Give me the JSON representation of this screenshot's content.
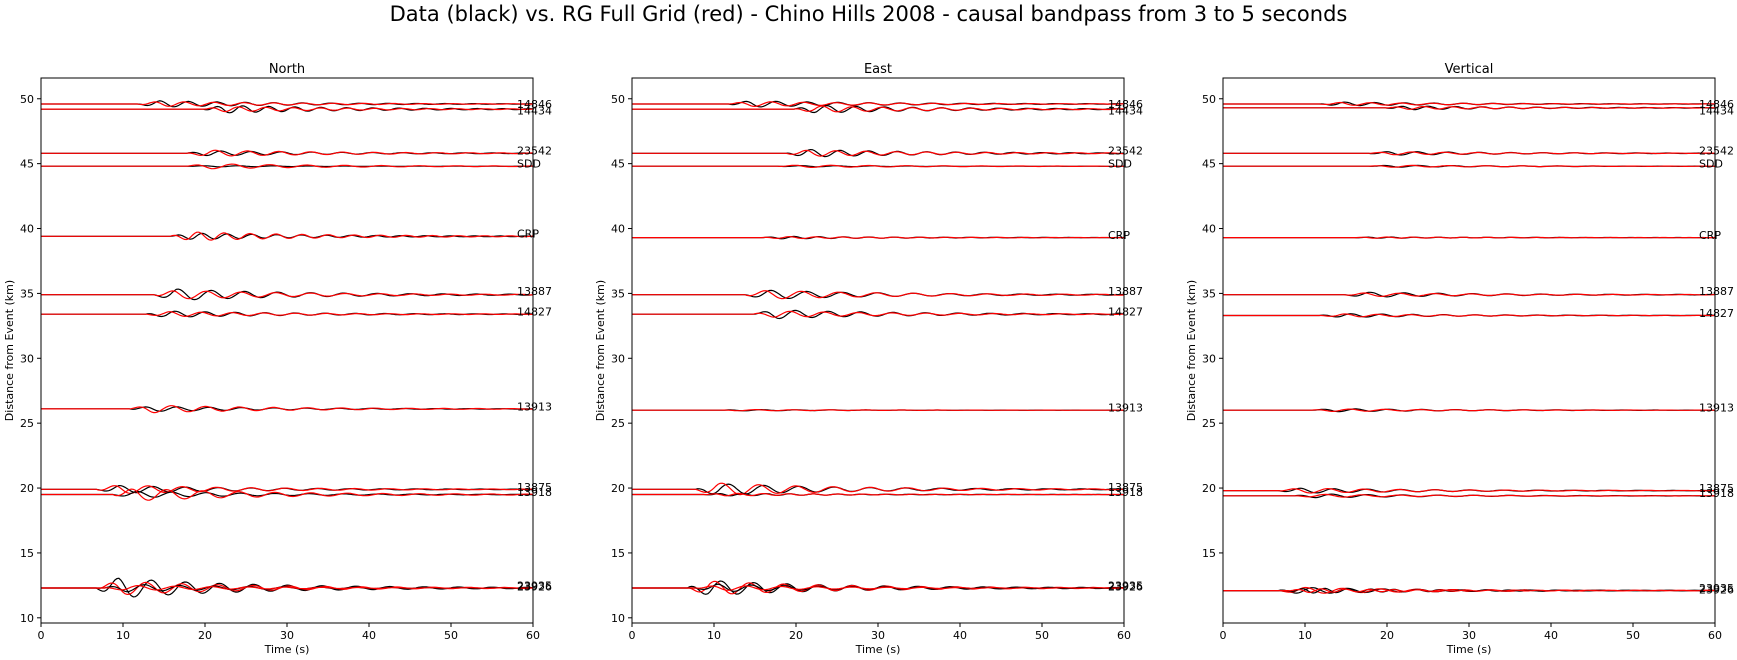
{
  "figure": {
    "suptitle": "Data (black) vs. RG Full Grid (red) - Chino Hills 2008 - causal bandpass from 3 to 5 seconds",
    "colors": {
      "data": "#000000",
      "synthetic": "#ff0000",
      "axis": "#000000",
      "text": "#000000"
    }
  },
  "chart_data": [
    {
      "type": "line",
      "title": "North",
      "xlabel": "Time (s)",
      "ylabel": "Distance from Event (km)",
      "xlim": [
        0,
        60
      ],
      "ylim": [
        9.6,
        51.6
      ],
      "xticks": [
        0,
        10,
        20,
        30,
        40,
        50,
        60
      ],
      "yticks": [
        10,
        15,
        20,
        25,
        30,
        35,
        40,
        45,
        50
      ],
      "series": [
        {
          "name": "14846",
          "offset": 49.6,
          "label_y": 49.6,
          "data_amp": 0.25,
          "syn_amp": 0.2,
          "onset": 12
        },
        {
          "name": "14434",
          "offset": 49.2,
          "label_y": 49.1,
          "data_amp": 0.3,
          "syn_amp": 0.2,
          "onset": 20
        },
        {
          "name": "23542",
          "offset": 45.8,
          "label_y": 46.0,
          "data_amp": 0.2,
          "syn_amp": 0.25,
          "onset": 18
        },
        {
          "name": "SDD",
          "offset": 44.8,
          "label_y": 45.0,
          "data_amp": 0.05,
          "syn_amp": 0.2,
          "onset": 18
        },
        {
          "name": "CRP",
          "offset": 39.4,
          "label_y": 39.6,
          "data_amp": 0.25,
          "syn_amp": 0.35,
          "onset": 16
        },
        {
          "name": "13887",
          "offset": 34.9,
          "label_y": 35.2,
          "data_amp": 0.45,
          "syn_amp": 0.35,
          "onset": 14
        },
        {
          "name": "14827",
          "offset": 33.4,
          "label_y": 33.6,
          "data_amp": 0.25,
          "syn_amp": 0.2,
          "onset": 13
        },
        {
          "name": "13913",
          "offset": 26.1,
          "label_y": 26.3,
          "data_amp": 0.2,
          "syn_amp": 0.3,
          "onset": 11
        },
        {
          "name": "13875",
          "offset": 19.9,
          "label_y": 20.1,
          "data_amp": 0.3,
          "syn_amp": 0.35,
          "onset": 7
        },
        {
          "name": "13918",
          "offset": 19.5,
          "label_y": 19.7,
          "data_amp": 0.25,
          "syn_amp": 0.5,
          "onset": 9
        },
        {
          "name": "23935",
          "offset": 12.3,
          "label_y": 12.5,
          "data_amp": 0.8,
          "syn_amp": 0.55,
          "onset": 7
        },
        {
          "name": "23926",
          "offset": 12.3,
          "label_y": 12.4,
          "data_amp": 0.3,
          "syn_amp": 0.2,
          "onset": 8
        }
      ]
    },
    {
      "type": "line",
      "title": "East",
      "xlabel": "Time (s)",
      "ylabel": "Distance from Event (km)",
      "xlim": [
        0,
        60
      ],
      "ylim": [
        9.6,
        51.6
      ],
      "xticks": [
        0,
        10,
        20,
        30,
        40,
        50,
        60
      ],
      "yticks": [
        10,
        15,
        20,
        25,
        30,
        35,
        40,
        45,
        50
      ],
      "series": [
        {
          "name": "14846",
          "offset": 49.6,
          "label_y": 49.6,
          "data_amp": 0.25,
          "syn_amp": 0.2,
          "onset": 12
        },
        {
          "name": "14434",
          "offset": 49.2,
          "label_y": 49.1,
          "data_amp": 0.3,
          "syn_amp": 0.25,
          "onset": 20
        },
        {
          "name": "23542",
          "offset": 45.8,
          "label_y": 46.0,
          "data_amp": 0.3,
          "syn_amp": 0.25,
          "onset": 19
        },
        {
          "name": "SDD",
          "offset": 44.8,
          "label_y": 45.0,
          "data_amp": 0.05,
          "syn_amp": 0.1,
          "onset": 18
        },
        {
          "name": "CRP",
          "offset": 39.3,
          "label_y": 39.5,
          "data_amp": 0.1,
          "syn_amp": 0.08,
          "onset": 16
        },
        {
          "name": "13887",
          "offset": 34.9,
          "label_y": 35.2,
          "data_amp": 0.35,
          "syn_amp": 0.35,
          "onset": 14
        },
        {
          "name": "14827",
          "offset": 33.4,
          "label_y": 33.6,
          "data_amp": 0.35,
          "syn_amp": 0.25,
          "onset": 15
        },
        {
          "name": "13913",
          "offset": 26.0,
          "label_y": 26.2,
          "data_amp": 0.05,
          "syn_amp": 0.05,
          "onset": 11
        },
        {
          "name": "13875",
          "offset": 19.9,
          "label_y": 20.1,
          "data_amp": 0.45,
          "syn_amp": 0.5,
          "onset": 8
        },
        {
          "name": "13918",
          "offset": 19.5,
          "label_y": 19.7,
          "data_amp": 0.1,
          "syn_amp": 0.1,
          "onset": 9
        },
        {
          "name": "23935",
          "offset": 12.3,
          "label_y": 12.5,
          "data_amp": 0.6,
          "syn_amp": 0.55,
          "onset": 7
        },
        {
          "name": "23926",
          "offset": 12.3,
          "label_y": 12.4,
          "data_amp": 0.3,
          "syn_amp": 0.2,
          "onset": 8
        }
      ]
    },
    {
      "type": "line",
      "title": "Vertical",
      "xlabel": "Time (s)",
      "ylabel": "Distance from Event (km)",
      "xlim": [
        0,
        60
      ],
      "ylim": [
        9.6,
        51.6
      ],
      "xticks": [
        0,
        10,
        20,
        30,
        40,
        50,
        60
      ],
      "yticks": [
        15,
        20,
        25,
        30,
        35,
        40,
        45,
        50
      ],
      "series": [
        {
          "name": "14846",
          "offset": 49.6,
          "label_y": 49.6,
          "data_amp": 0.15,
          "syn_amp": 0.12,
          "onset": 12
        },
        {
          "name": "14434",
          "offset": 49.3,
          "label_y": 49.1,
          "data_amp": 0.15,
          "syn_amp": 0.12,
          "onset": 20
        },
        {
          "name": "23542",
          "offset": 45.8,
          "label_y": 46.0,
          "data_amp": 0.15,
          "syn_amp": 0.12,
          "onset": 18
        },
        {
          "name": "SDD",
          "offset": 44.8,
          "label_y": 45.0,
          "data_amp": 0.08,
          "syn_amp": 0.08,
          "onset": 18
        },
        {
          "name": "CRP",
          "offset": 39.3,
          "label_y": 39.5,
          "data_amp": 0.05,
          "syn_amp": 0.05,
          "onset": 16
        },
        {
          "name": "13887",
          "offset": 34.9,
          "label_y": 35.2,
          "data_amp": 0.2,
          "syn_amp": 0.15,
          "onset": 15
        },
        {
          "name": "14827",
          "offset": 33.3,
          "label_y": 33.5,
          "data_amp": 0.15,
          "syn_amp": 0.12,
          "onset": 12
        },
        {
          "name": "13913",
          "offset": 26.0,
          "label_y": 26.2,
          "data_amp": 0.12,
          "syn_amp": 0.1,
          "onset": 11
        },
        {
          "name": "13875",
          "offset": 19.8,
          "label_y": 20.0,
          "data_amp": 0.2,
          "syn_amp": 0.2,
          "onset": 7
        },
        {
          "name": "13918",
          "offset": 19.4,
          "label_y": 19.6,
          "data_amp": 0.15,
          "syn_amp": 0.12,
          "onset": 9
        },
        {
          "name": "23935",
          "offset": 12.1,
          "label_y": 12.3,
          "data_amp": 0.25,
          "syn_amp": 0.25,
          "onset": 7
        },
        {
          "name": "23926",
          "offset": 12.1,
          "label_y": 12.2,
          "data_amp": 0.2,
          "syn_amp": 0.15,
          "onset": 8
        }
      ]
    }
  ]
}
